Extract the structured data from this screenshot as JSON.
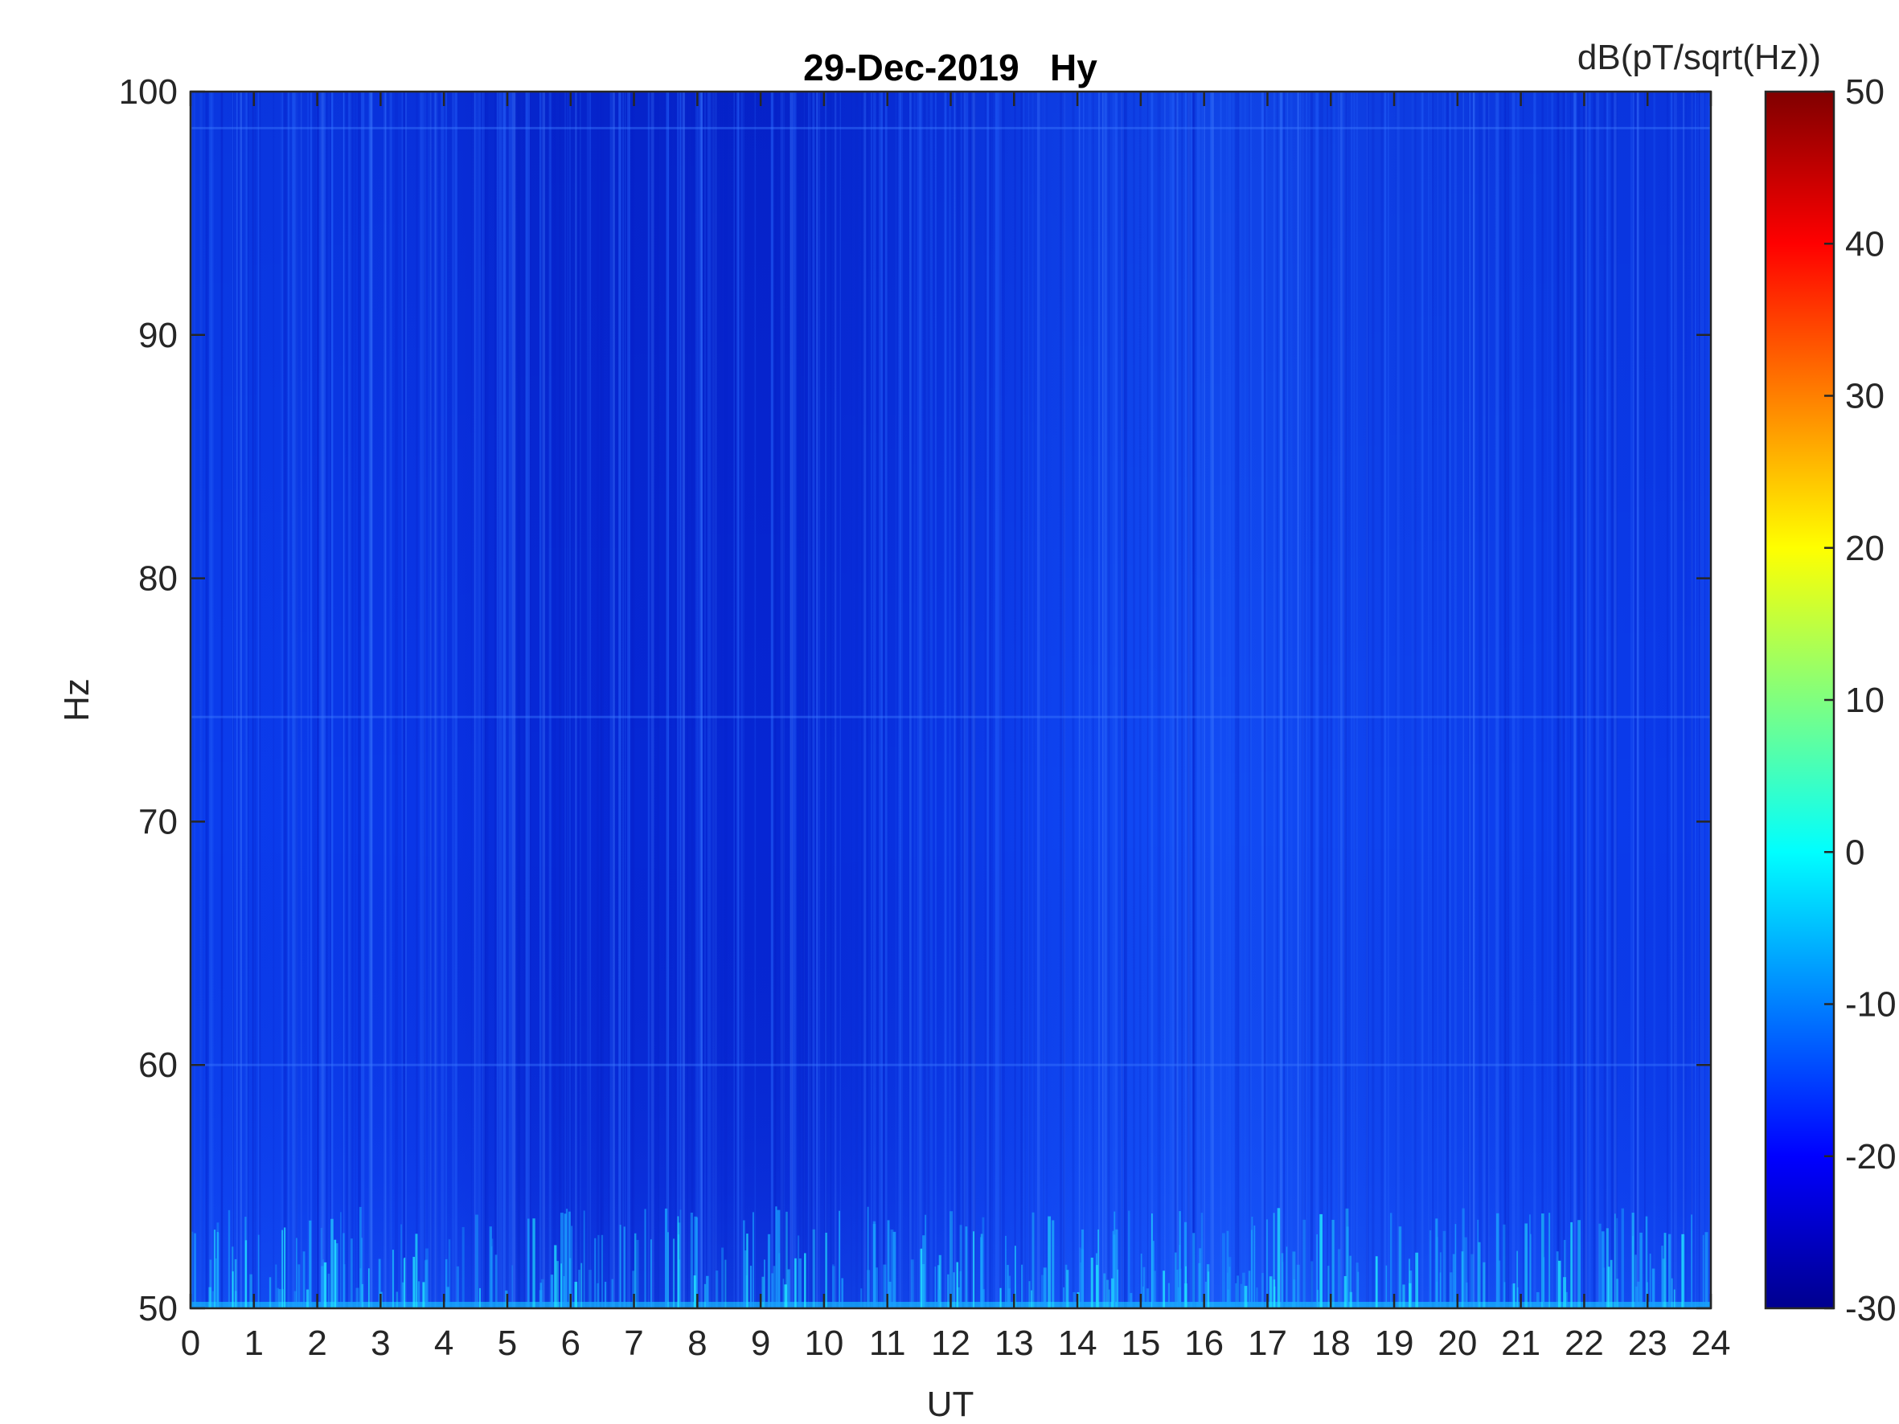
{
  "chart_data": {
    "type": "heatmap",
    "title": "29-Dec-2019   Hy",
    "xlabel": "UT",
    "ylabel": "Hz",
    "xlim": [
      0,
      24
    ],
    "ylim": [
      50,
      100
    ],
    "xticks": [
      "0",
      "1",
      "2",
      "3",
      "4",
      "5",
      "6",
      "7",
      "8",
      "9",
      "10",
      "11",
      "12",
      "13",
      "14",
      "15",
      "16",
      "17",
      "18",
      "19",
      "20",
      "21",
      "22",
      "23",
      "24"
    ],
    "yticks": [
      "50",
      "60",
      "70",
      "80",
      "90",
      "100"
    ],
    "colorbar": {
      "label": "dB(pT/sqrt(Hz))",
      "range": [
        -30,
        50
      ],
      "ticks": [
        "-30",
        "-20",
        "-10",
        "0",
        "10",
        "20",
        "30",
        "40",
        "50"
      ],
      "colormap": "jet"
    },
    "background_level_db": -23,
    "features": {
      "low_frequency_band_hz": [
        50,
        53
      ],
      "horizontal_lines_hz": [
        60,
        74.3,
        98.5
      ]
    },
    "grid": false,
    "box": true
  },
  "colors": {
    "axis": "#262626",
    "title": "#000000",
    "field": "#0a37ee",
    "field_dark": "#0826d6",
    "field_light": "#1a56f5"
  }
}
